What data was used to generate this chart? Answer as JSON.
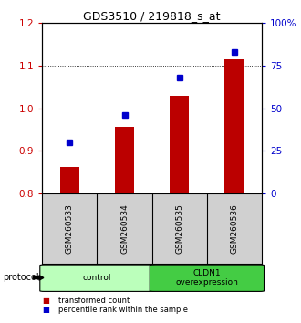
{
  "title": "GDS3510 / 219818_s_at",
  "samples": [
    "GSM260533",
    "GSM260534",
    "GSM260535",
    "GSM260536"
  ],
  "red_values": [
    0.862,
    0.957,
    1.03,
    1.115
  ],
  "blue_values_pct": [
    30,
    46,
    68,
    83
  ],
  "ylim_left": [
    0.8,
    1.2
  ],
  "ylim_right": [
    0,
    100
  ],
  "yticks_left": [
    0.8,
    0.9,
    1.0,
    1.1,
    1.2
  ],
  "yticks_right": [
    0,
    25,
    50,
    75,
    100
  ],
  "ytick_labels_right": [
    "0",
    "25",
    "50",
    "75",
    "100%"
  ],
  "bar_color": "#bb0000",
  "dot_color": "#0000cc",
  "bar_bottom": 0.8,
  "groups": [
    {
      "label": "control",
      "color": "#bbffbb"
    },
    {
      "label": "CLDN1\noverexpression",
      "color": "#44cc44"
    }
  ],
  "protocol_label": "protocol",
  "legend_bar_label": "transformed count",
  "legend_dot_label": "percentile rank within the sample",
  "background_color": "#ffffff",
  "tick_color_left": "#cc0000",
  "tick_color_right": "#0000cc",
  "sample_box_color": "#d0d0d0"
}
